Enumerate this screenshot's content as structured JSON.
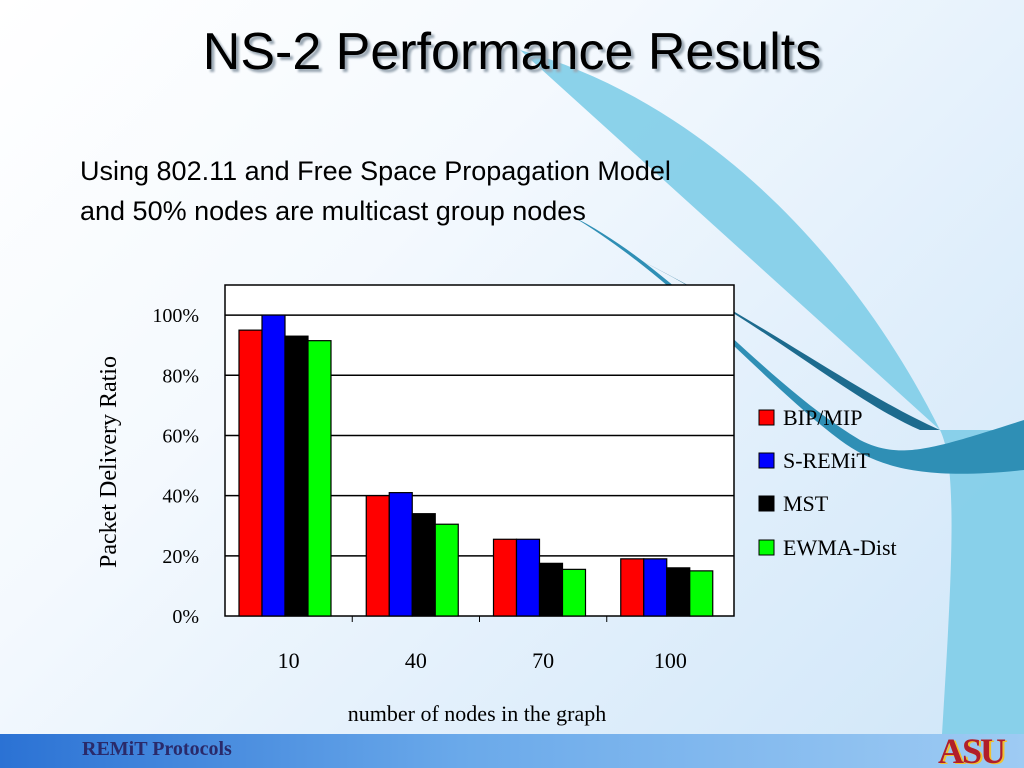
{
  "slide": {
    "title": "NS-2 Performance Results",
    "subtitle_line1": "Using 802.11 and Free Space Propagation Model",
    "subtitle_line2": "and 50% nodes are multicast group nodes",
    "footer": "REMiT Protocols",
    "logo": "ASU"
  },
  "colors": {
    "bip_mip": "#ff0000",
    "s_remit": "#0000ff",
    "mst": "#000000",
    "ewma_dist": "#00ff00",
    "footer_text": "#2a2a6a",
    "logo": "#b11e2a",
    "swoosh": "#2f8fb5"
  },
  "chart_data": {
    "type": "bar",
    "categories": [
      "10",
      "40",
      "70",
      "100"
    ],
    "series": [
      {
        "name": "BIP/MIP",
        "values": [
          95,
          40,
          25.5,
          19
        ]
      },
      {
        "name": "S-REMiT",
        "values": [
          100,
          41,
          25.5,
          19
        ]
      },
      {
        "name": "MST",
        "values": [
          93,
          34,
          17.5,
          16
        ]
      },
      {
        "name": "EWMA-Dist",
        "values": [
          91.5,
          30.5,
          15.5,
          15
        ]
      }
    ],
    "yticks": [
      "0%",
      "20%",
      "40%",
      "60%",
      "80%",
      "100%"
    ],
    "ylim": [
      0,
      110
    ],
    "xlabel": "number of nodes in the graph",
    "ylabel": "Packet Delivery Ratio",
    "grid": true,
    "legend": "right"
  }
}
